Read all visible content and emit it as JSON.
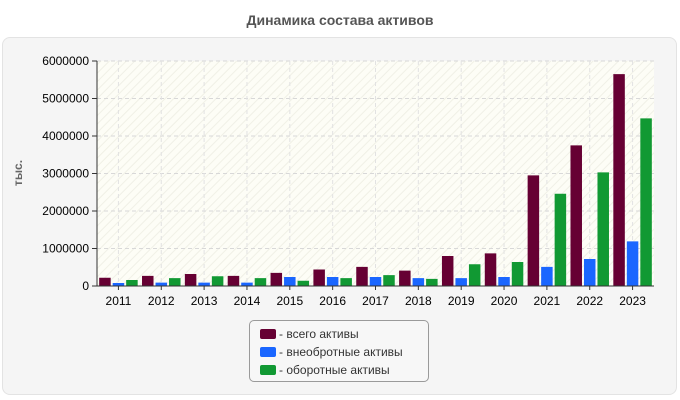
{
  "chart_data": {
    "type": "bar",
    "title": "Динамика состава активов",
    "ylabel": "тыс.",
    "xlabel": "",
    "categories": [
      "2011",
      "2012",
      "2013",
      "2014",
      "2015",
      "2016",
      "2017",
      "2018",
      "2019",
      "2020",
      "2021",
      "2022",
      "2023"
    ],
    "ylim": [
      0,
      6000000
    ],
    "yticks": [
      0,
      1000000,
      2000000,
      3000000,
      4000000,
      5000000,
      6000000
    ],
    "grid": true,
    "legend_position": "bottom",
    "series": [
      {
        "name": "всего активы",
        "color": "#660033",
        "values": [
          220000,
          270000,
          320000,
          270000,
          350000,
          440000,
          510000,
          410000,
          800000,
          870000,
          2950000,
          3750000,
          5650000
        ]
      },
      {
        "name": "внеобротные активы",
        "color": "#1a66ff",
        "values": [
          80000,
          90000,
          90000,
          90000,
          240000,
          240000,
          240000,
          210000,
          210000,
          240000,
          510000,
          720000,
          1190000
        ]
      },
      {
        "name": "оборотные активы",
        "color": "#119933",
        "values": [
          160000,
          210000,
          260000,
          210000,
          140000,
          210000,
          290000,
          190000,
          580000,
          640000,
          2460000,
          3030000,
          4470000
        ]
      }
    ]
  }
}
